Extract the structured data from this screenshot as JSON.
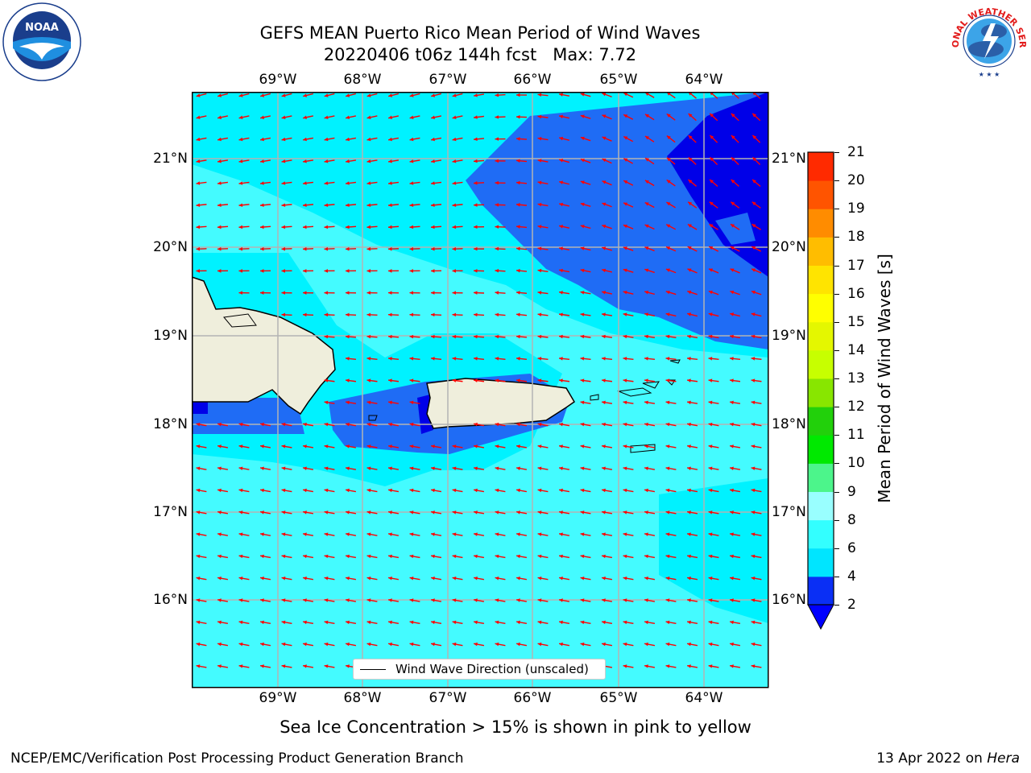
{
  "title_line1": "GEFS MEAN Puerto Rico Mean Period of Wind Waves",
  "title_line2": "20220406 t06z 144h fcst   Max: 7.72",
  "lon_labels": [
    "69°W",
    "68°W",
    "67°W",
    "66°W",
    "65°W",
    "64°W"
  ],
  "lat_labels": [
    "21°N",
    "20°N",
    "19°N",
    "18°N",
    "17°N",
    "16°N"
  ],
  "colorbar": {
    "title": "Mean Period of Wind Waves [s]",
    "ticks": [
      "2",
      "4",
      "6",
      "8",
      "9",
      "10",
      "11",
      "12",
      "13",
      "14",
      "15",
      "16",
      "17",
      "18",
      "19",
      "20",
      "21"
    ],
    "colors": [
      "#0a2ff5",
      "#00e5ff",
      "#33ffff",
      "#99ffff",
      "#4cf58b",
      "#00e900",
      "#22d00b",
      "#88e600",
      "#c7ff00",
      "#e4f700",
      "#ffff00",
      "#ffe400",
      "#ffbd00",
      "#ff8c00",
      "#ff5400",
      "#ff2a00",
      "#ff0000"
    ],
    "under_color": "#0000ff"
  },
  "legend_label": "Wind Wave Direction (unscaled)",
  "sea_ice_note": "Sea Ice Concentration > 15% is shown in pink to yellow",
  "footer_left": "NCEP/EMC/Verification Post Processing Product Generation Branch",
  "footer_date": "13 Apr 2022 on",
  "footer_machine": "Hera",
  "logo_left_text": "NOAA",
  "logo_right_text": "NATIONAL WEATHER SERVICE",
  "map_colors": {
    "period_2_4": "#1f6cf5",
    "period_4_6": "#00f2ff",
    "period_6_8": "#44fbff",
    "period_lt_2": "#0000e8",
    "land": "#efeedc",
    "arrow": "#ff0000"
  }
}
